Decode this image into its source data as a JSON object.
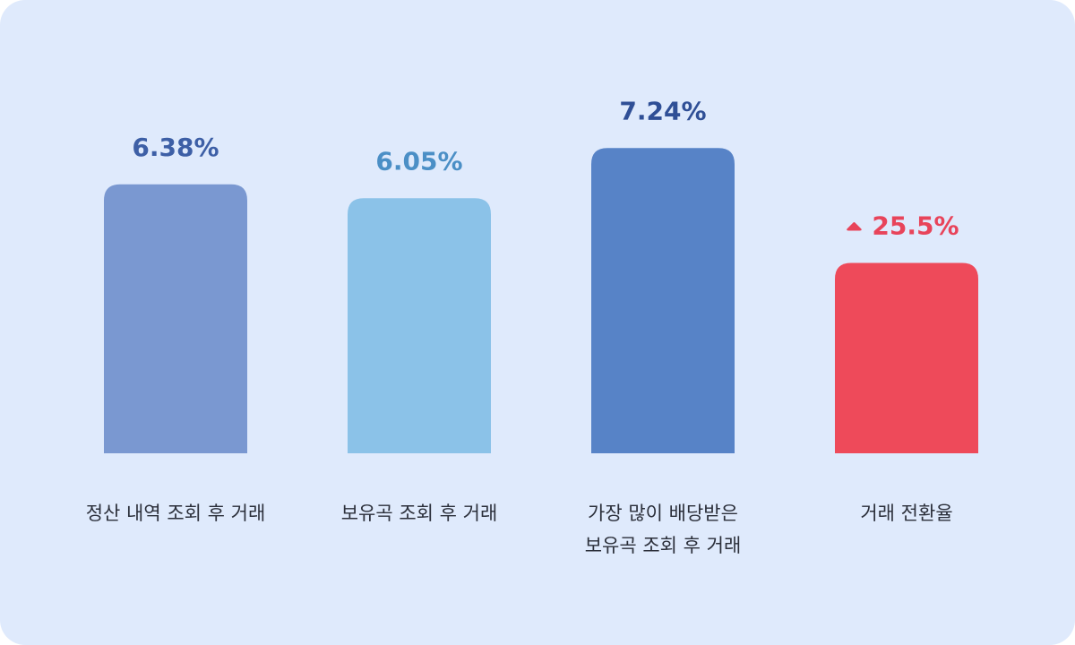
{
  "chart_data": {
    "type": "bar",
    "categories": [
      "정산 내역 조회 후 거래",
      "보유곡 조회 후 거래",
      "가장 많이 배당받은\n보유곡 조회 후 거래",
      "거래 전환율"
    ],
    "colors": [
      "#7a98d1",
      "#8bc2e8",
      "#5783c7",
      "#ee4a5a"
    ],
    "label_colors": [
      "#3d5fa6",
      "#4b8fc6",
      "#2f4f96",
      "#e8445a"
    ],
    "series": [
      {
        "values": [
          6.38,
          6.05,
          7.24,
          null
        ],
        "value_labels": [
          "6.38%",
          "6.05%",
          "7.24%",
          null
        ]
      },
      {
        "values": [
          null,
          null,
          null,
          25.5
        ],
        "value_labels": [
          null,
          null,
          null,
          "25.5%"
        ],
        "axis": "y2"
      }
    ],
    "ylim": [
      0,
      8.5
    ],
    "y2lim": [
      0,
      48
    ]
  }
}
